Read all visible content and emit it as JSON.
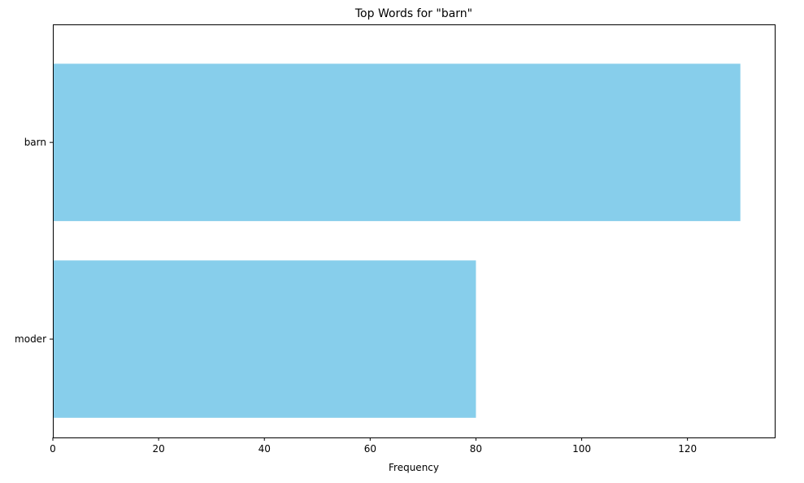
{
  "chart_data": {
    "type": "bar",
    "orientation": "horizontal",
    "title": "Top Words for \"barn\"",
    "xlabel": "Frequency",
    "ylabel": "",
    "categories": [
      "barn",
      "moder"
    ],
    "values": [
      130,
      80
    ],
    "xlim": [
      0,
      136.5
    ],
    "xticks": [
      0,
      20,
      40,
      60,
      80,
      100,
      120
    ],
    "bar_color": "#87ceeb",
    "grid": false,
    "legend": "none"
  }
}
